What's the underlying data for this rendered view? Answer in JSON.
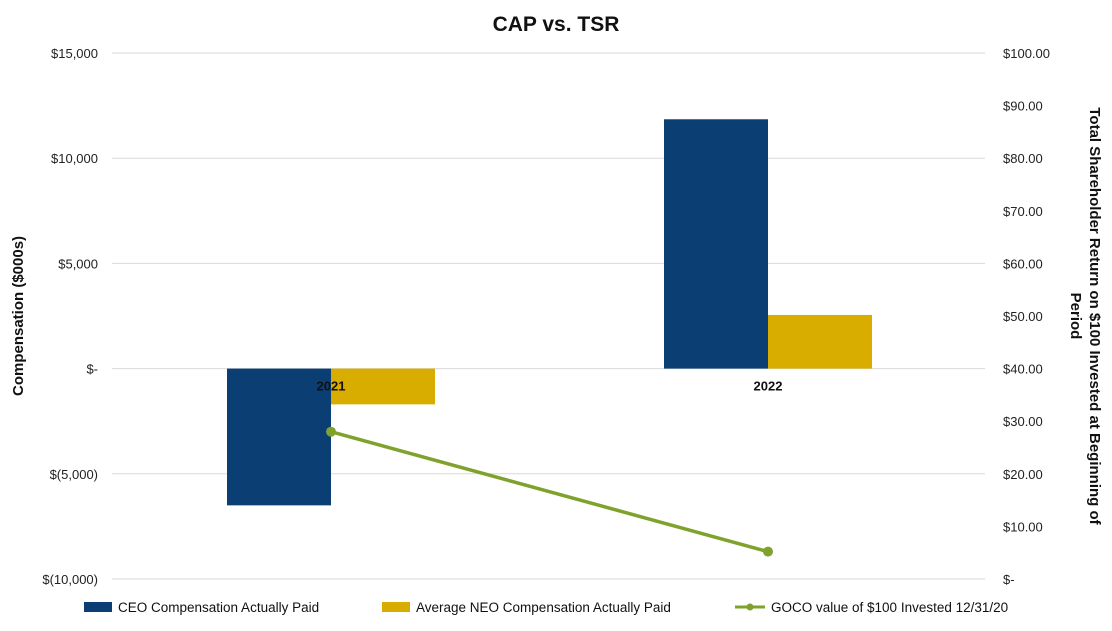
{
  "chart_data": {
    "type": "bar",
    "title": "CAP vs. TSR",
    "categories": [
      "2021",
      "2022"
    ],
    "ylabel": "Compensation ($000s)",
    "y2label_lines": [
      "Total Shareholder Return on $100 Invested at Beginning of",
      "Period"
    ],
    "ylim": [
      -10000,
      15000
    ],
    "y2lim": [
      0,
      100
    ],
    "y_ticks": [
      15000,
      10000,
      5000,
      0,
      -5000,
      -10000
    ],
    "y_tick_labels": [
      "$15,000",
      "$10,000",
      "$5,000",
      "$-",
      "$(5,000)",
      "$(10,000)"
    ],
    "y2_ticks": [
      100,
      90,
      80,
      70,
      60,
      50,
      40,
      30,
      20,
      10,
      0
    ],
    "y2_tick_labels": [
      "$100.00",
      "$90.00",
      "$80.00",
      "$70.00",
      "$60.00",
      "$50.00",
      "$40.00",
      "$30.00",
      "$20.00",
      "$10.00",
      "$-"
    ],
    "grid": true,
    "legend_position": "bottom",
    "series": [
      {
        "name": "CEO Compensation Actually Paid",
        "kind": "bar",
        "axis": "left",
        "color": "#0b3f73",
        "values": [
          -6500,
          11850
        ]
      },
      {
        "name": "Average NEO Compensation Actually Paid",
        "kind": "bar",
        "axis": "left",
        "color": "#d9ad00",
        "values": [
          -1700,
          2550
        ]
      },
      {
        "name": "GOCO value of $100 Invested 12/31/20",
        "kind": "line",
        "axis": "right",
        "color": "#7ea22b",
        "values": [
          28,
          5.2
        ]
      }
    ]
  }
}
